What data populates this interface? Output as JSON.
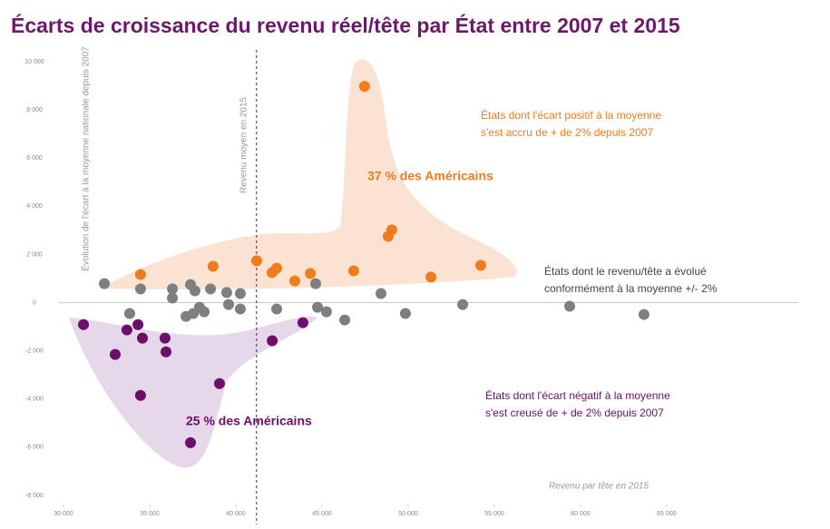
{
  "chart_data": {
    "type": "scatter",
    "title": "Écarts de croissance du revenu réel/tête par État entre 2007 et 2015",
    "y_label": "Évolution de l'écart à la moyenne nationale depuis 2007",
    "x_label": "Revenu par tête en 2015",
    "xlim": [
      30000,
      65000
    ],
    "ylim": [
      -8000,
      10000
    ],
    "xticks": [
      {
        "value": 30000,
        "label": "30 000"
      },
      {
        "value": 35000,
        "label": "35 000"
      },
      {
        "value": 40000,
        "label": "40 000"
      },
      {
        "value": 45000,
        "label": "45 000"
      },
      {
        "value": 50000,
        "label": "50 000"
      },
      {
        "value": 55000,
        "label": "55 000"
      },
      {
        "value": 60000,
        "label": "60 000"
      },
      {
        "value": 65000,
        "label": "65 000"
      }
    ],
    "yticks": [
      {
        "value": 10000,
        "label": "10 000"
      },
      {
        "value": 8000,
        "label": "8 000"
      },
      {
        "value": 6000,
        "label": "6 000"
      },
      {
        "value": 4000,
        "label": "4 000"
      },
      {
        "value": 2000,
        "label": "2 000"
      },
      0,
      {
        "value": -2000,
        "label": "-2 000"
      },
      {
        "value": -4000,
        "label": "-4 000"
      },
      {
        "value": -6000,
        "label": "-6 000"
      },
      {
        "value": -8000,
        "label": "-8 000"
      }
    ],
    "vline": {
      "value": 41200,
      "label": "Revenu moyen en 2015"
    },
    "series": [
      {
        "color": "#f07c1c",
        "x": [
          34470,
          38680,
          41210,
          42100,
          42370,
          43420,
          44320,
          46840,
          47470,
          48840,
          49050,
          51320,
          54210
        ],
        "values": [
          1170,
          1510,
          1740,
          1250,
          1430,
          900,
          1210,
          1320,
          8980,
          2750,
          3020,
          1060,
          1550
        ]
      },
      {
        "color": "#7f7f7f",
        "x": [
          32370,
          34470,
          36320,
          36320,
          37370,
          37630,
          37890,
          37110,
          37530,
          38160,
          38530,
          39470,
          40260,
          39580,
          40260,
          33840,
          42370,
          44630,
          44740,
          45260,
          46320,
          48420,
          49840,
          53160,
          59370,
          63680
        ],
        "values": [
          790,
          570,
          570,
          190,
          750,
          490,
          -190,
          -570,
          -450,
          -380,
          570,
          420,
          380,
          -80,
          -260,
          -450,
          -260,
          790,
          -190,
          -380,
          -720,
          380,
          -450,
          -80,
          -150,
          -490
        ]
      },
      {
        "color": "#6b0f6b",
        "x": [
          31160,
          33000,
          33680,
          34320,
          34580,
          35890,
          35950,
          34470,
          39050,
          42110,
          43890,
          37370
        ],
        "values": [
          -910,
          -2150,
          -1130,
          -910,
          -1470,
          -1470,
          -2040,
          -3850,
          -3360,
          -1580,
          -830,
          -5810
        ]
      }
    ],
    "annotations": [
      {
        "lines": [
          "États dont l'écart positif à la moyenne",
          "s'est accru de + de 2% depuis 2007"
        ],
        "color": "#f07c1c"
      },
      {
        "lines": [
          "37 % des Américains"
        ],
        "color": "#f07c1c"
      },
      {
        "lines": [
          "États dont le revenu/tête a évolué",
          "conformément à la moyenne +/- 2%"
        ],
        "color": "#444444"
      },
      {
        "lines": [
          "États dont l'écart négatif à la moyenne",
          "s'est creusé de + de 2% depuis 2007"
        ],
        "color": "#6b0f6b"
      },
      {
        "lines": [
          "25 % des Américains"
        ],
        "color": "#6b0f6b"
      }
    ]
  }
}
